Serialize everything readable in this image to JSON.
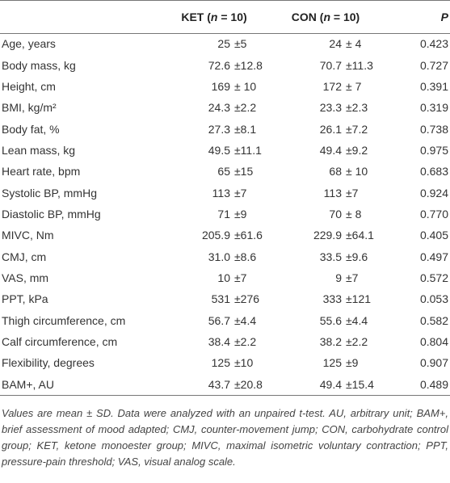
{
  "header": {
    "label": "",
    "ket": {
      "pre": "KET (",
      "var": "n",
      "post": " = 10)"
    },
    "con": {
      "pre": "CON (",
      "var": "n",
      "post": " = 10)"
    },
    "p": "P"
  },
  "rows": [
    [
      "Age, years",
      "25",
      "±5",
      "24",
      "± 4",
      "0.423"
    ],
    [
      "Body mass, kg",
      "72.6",
      "±12.8",
      "70.7",
      "±11.3",
      "0.727"
    ],
    [
      "Height, cm",
      "169",
      "± 10",
      "172",
      "± 7",
      "0.391"
    ],
    [
      "BMI, kg/m²",
      "24.3",
      "±2.2",
      "23.3",
      "±2.3",
      "0.319"
    ],
    [
      "Body fat, %",
      "27.3",
      "±8.1",
      "26.1",
      "±7.2",
      "0.738"
    ],
    [
      "Lean mass, kg",
      "49.5",
      "±11.1",
      "49.4",
      "±9.2",
      "0.975"
    ],
    [
      "Heart rate, bpm",
      "65",
      "±15",
      "68",
      "± 10",
      "0.683"
    ],
    [
      "Systolic BP, mmHg",
      "113",
      "±7",
      "113",
      "±7",
      "0.924"
    ],
    [
      "Diastolic BP, mmHg",
      "71",
      "±9",
      "70",
      "± 8",
      "0.770"
    ],
    [
      "MIVC, Nm",
      "205.9",
      "±61.6",
      "229.9",
      "±64.1",
      "0.405"
    ],
    [
      "CMJ, cm",
      "31.0",
      "±8.6",
      "33.5",
      "±9.6",
      "0.497"
    ],
    [
      "VAS, mm",
      "10",
      "±7",
      "9",
      "±7",
      "0.572"
    ],
    [
      "PPT, kPa",
      "531",
      "±276",
      "333",
      "±121",
      "0.053"
    ],
    [
      "Thigh circumference, cm",
      "56.7",
      "±4.4",
      "55.6",
      "±4.4",
      "0.582"
    ],
    [
      "Calf circumference, cm",
      "38.4",
      "±2.2",
      "38.2",
      "±2.2",
      "0.804"
    ],
    [
      "Flexibility, degrees",
      "125",
      "±10",
      "125",
      "±9",
      "0.907"
    ],
    [
      "BAM+, AU",
      "43.7",
      "±20.8",
      "49.4",
      "±15.4",
      "0.489"
    ]
  ],
  "footnote": "Values are mean ± SD. Data were analyzed with an unpaired t-test. AU, arbitrary unit; BAM+, brief assessment of mood adapted; CMJ, counter-movement jump; CON, carbohydrate control group; KET, ketone monoester group; MIVC, maximal isometric voluntary contraction; PPT, pressure-pain threshold; VAS, visual analog scale."
}
